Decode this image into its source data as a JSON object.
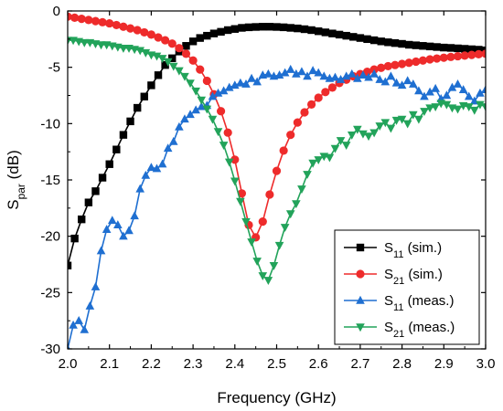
{
  "chart_data": {
    "type": "line",
    "xlabel": "Frequency (GHz)",
    "ylabel": {
      "main": "S",
      "sub": "par",
      "unit": " (dB)"
    },
    "xlim": [
      2.0,
      3.0
    ],
    "ylim": [
      -30,
      0
    ],
    "xticks": [
      2.0,
      2.1,
      2.2,
      2.3,
      2.4,
      2.5,
      2.6,
      2.7,
      2.8,
      2.9,
      3.0
    ],
    "xtick_labels": [
      "2.0",
      "2.1",
      "2.2",
      "2.3",
      "2.4",
      "2.5",
      "2.6",
      "2.7",
      "2.8",
      "2.9",
      "3.0"
    ],
    "yticks": [
      0,
      -5,
      -10,
      -15,
      -20,
      -25,
      -30
    ],
    "ytick_labels": [
      "0",
      "-5",
      "-10",
      "-15",
      "-20",
      "-25",
      "-30"
    ],
    "grid": false,
    "legend_position": "bottom-right",
    "series": [
      {
        "name": "S11 (sim.)",
        "legend": {
          "main": "S",
          "sub": "11",
          "rest": " (sim.)"
        },
        "color": "#000000",
        "marker": "square",
        "x": [
          2.0,
          2.0167,
          2.0333,
          2.05,
          2.0667,
          2.0833,
          2.1,
          2.1167,
          2.1333,
          2.15,
          2.1667,
          2.1833,
          2.2,
          2.2167,
          2.2333,
          2.25,
          2.2667,
          2.2833,
          2.3,
          2.3167,
          2.3333,
          2.35,
          2.3667,
          2.3833,
          2.4,
          2.4167,
          2.4333,
          2.45,
          2.4667,
          2.4833,
          2.5,
          2.5167,
          2.5333,
          2.55,
          2.5667,
          2.5833,
          2.6,
          2.6167,
          2.6333,
          2.65,
          2.6667,
          2.6833,
          2.7,
          2.7167,
          2.7333,
          2.75,
          2.7667,
          2.7833,
          2.8,
          2.8167,
          2.8333,
          2.85,
          2.8667,
          2.8833,
          2.9,
          2.9167,
          2.9333,
          2.95,
          2.9667,
          2.9833,
          3.0
        ],
        "y": [
          -22.6,
          -20.2,
          -18.5,
          -17.0,
          -16.0,
          -14.8,
          -13.6,
          -12.3,
          -11.0,
          -9.8,
          -8.6,
          -7.6,
          -6.6,
          -5.7,
          -4.8,
          -4.2,
          -3.6,
          -3.1,
          -2.7,
          -2.4,
          -2.2,
          -2.0,
          -1.85,
          -1.7,
          -1.6,
          -1.5,
          -1.45,
          -1.42,
          -1.4,
          -1.4,
          -1.42,
          -1.45,
          -1.5,
          -1.55,
          -1.62,
          -1.7,
          -1.8,
          -1.9,
          -2.0,
          -2.1,
          -2.2,
          -2.3,
          -2.4,
          -2.5,
          -2.6,
          -2.7,
          -2.78,
          -2.85,
          -2.92,
          -3.0,
          -3.05,
          -3.1,
          -3.15,
          -3.2,
          -3.25,
          -3.28,
          -3.32,
          -3.36,
          -3.4,
          -3.44,
          -3.5
        ]
      },
      {
        "name": "S21 (sim.)",
        "legend": {
          "main": "S",
          "sub": "21",
          "rest": " (sim.)"
        },
        "color": "#ee2b2b",
        "marker": "circle",
        "x": [
          2.0,
          2.0167,
          2.0333,
          2.05,
          2.0667,
          2.0833,
          2.1,
          2.1167,
          2.1333,
          2.15,
          2.1667,
          2.1833,
          2.2,
          2.2167,
          2.2333,
          2.25,
          2.2667,
          2.2833,
          2.3,
          2.3167,
          2.3333,
          2.35,
          2.3667,
          2.3833,
          2.4,
          2.4167,
          2.4333,
          2.45,
          2.4667,
          2.4833,
          2.5,
          2.5167,
          2.5333,
          2.55,
          2.5667,
          2.5833,
          2.6,
          2.6167,
          2.6333,
          2.65,
          2.6667,
          2.6833,
          2.7,
          2.7167,
          2.7333,
          2.75,
          2.7667,
          2.7833,
          2.8,
          2.8167,
          2.8333,
          2.85,
          2.8667,
          2.8833,
          2.9,
          2.9167,
          2.9333,
          2.95,
          2.9667,
          2.9833,
          3.0
        ],
        "y": [
          -0.5,
          -0.6,
          -0.7,
          -0.8,
          -0.9,
          -1.0,
          -1.1,
          -1.25,
          -1.4,
          -1.55,
          -1.7,
          -1.9,
          -2.1,
          -2.35,
          -2.6,
          -2.9,
          -3.3,
          -3.8,
          -4.4,
          -5.2,
          -6.2,
          -7.4,
          -8.9,
          -10.8,
          -13.2,
          -16.2,
          -19.0,
          -20.1,
          -18.7,
          -16.3,
          -14.2,
          -12.4,
          -11.0,
          -9.9,
          -9.0,
          -8.3,
          -7.7,
          -7.2,
          -6.8,
          -6.4,
          -6.1,
          -5.8,
          -5.6,
          -5.4,
          -5.2,
          -5.05,
          -4.9,
          -4.8,
          -4.7,
          -4.6,
          -4.5,
          -4.4,
          -4.3,
          -4.22,
          -4.15,
          -4.08,
          -4.02,
          -3.96,
          -3.9,
          -3.84,
          -3.8
        ]
      },
      {
        "name": "S11 (meas.)",
        "legend": {
          "main": "S",
          "sub": "11",
          "rest": " (meas.)"
        },
        "color": "#1f6fd1",
        "marker": "triangle-up",
        "x": [
          2.0,
          2.0133,
          2.0267,
          2.04,
          2.0533,
          2.0667,
          2.08,
          2.0933,
          2.1067,
          2.12,
          2.1333,
          2.1467,
          2.16,
          2.1733,
          2.1867,
          2.2,
          2.2133,
          2.2267,
          2.24,
          2.2533,
          2.2667,
          2.28,
          2.2933,
          2.3067,
          2.32,
          2.3333,
          2.3467,
          2.36,
          2.3733,
          2.3867,
          2.4,
          2.4133,
          2.4267,
          2.44,
          2.4533,
          2.4667,
          2.48,
          2.4933,
          2.5067,
          2.52,
          2.5333,
          2.5467,
          2.56,
          2.5733,
          2.5867,
          2.6,
          2.6133,
          2.6267,
          2.64,
          2.6533,
          2.6667,
          2.68,
          2.6933,
          2.7067,
          2.72,
          2.7333,
          2.7467,
          2.76,
          2.7733,
          2.7867,
          2.8,
          2.8133,
          2.8267,
          2.84,
          2.8533,
          2.8667,
          2.88,
          2.8933,
          2.9067,
          2.92,
          2.9333,
          2.9467,
          2.96,
          2.9733,
          2.9867,
          3.0
        ],
        "y": [
          -30.0,
          -27.9,
          -27.5,
          -28.3,
          -26.2,
          -24.5,
          -21.3,
          -19.4,
          -18.6,
          -19.0,
          -20.0,
          -19.5,
          -18.2,
          -15.8,
          -14.6,
          -13.9,
          -14.0,
          -13.6,
          -12.2,
          -11.6,
          -10.3,
          -9.6,
          -9.2,
          -8.8,
          -8.5,
          -8.4,
          -7.6,
          -7.3,
          -7.1,
          -6.8,
          -6.6,
          -6.4,
          -6.5,
          -6.0,
          -6.3,
          -5.7,
          -5.6,
          -5.8,
          -5.7,
          -5.5,
          -5.2,
          -5.6,
          -5.4,
          -5.8,
          -5.3,
          -5.5,
          -5.8,
          -6.0,
          -5.9,
          -6.1,
          -5.8,
          -5.6,
          -6.0,
          -5.7,
          -5.9,
          -5.6,
          -6.1,
          -6.3,
          -5.8,
          -6.4,
          -6.6,
          -6.2,
          -6.5,
          -7.1,
          -7.6,
          -7.2,
          -6.9,
          -7.8,
          -7.5,
          -6.8,
          -6.5,
          -7.0,
          -7.6,
          -8.0,
          -7.3,
          -7.0
        ]
      },
      {
        "name": "S21 (meas.)",
        "legend": {
          "main": "S",
          "sub": "21",
          "rest": " (meas.)"
        },
        "color": "#22a35a",
        "marker": "triangle-down",
        "x": [
          2.0,
          2.0133,
          2.0267,
          2.04,
          2.0533,
          2.0667,
          2.08,
          2.0933,
          2.1067,
          2.12,
          2.1333,
          2.1467,
          2.16,
          2.1733,
          2.1867,
          2.2,
          2.2133,
          2.2267,
          2.24,
          2.2533,
          2.2667,
          2.28,
          2.2933,
          2.3067,
          2.32,
          2.3333,
          2.3467,
          2.36,
          2.3733,
          2.3867,
          2.4,
          2.4133,
          2.4267,
          2.44,
          2.4533,
          2.4667,
          2.48,
          2.4933,
          2.5067,
          2.52,
          2.5333,
          2.5467,
          2.56,
          2.5733,
          2.5867,
          2.6,
          2.6133,
          2.6267,
          2.64,
          2.6533,
          2.6667,
          2.68,
          2.6933,
          2.7067,
          2.72,
          2.7333,
          2.7467,
          2.76,
          2.7733,
          2.7867,
          2.8,
          2.8133,
          2.8267,
          2.84,
          2.8533,
          2.8667,
          2.88,
          2.8933,
          2.9067,
          2.92,
          2.9333,
          2.9467,
          2.96,
          2.9733,
          2.9867,
          3.0
        ],
        "y": [
          -2.6,
          -2.6,
          -2.7,
          -2.8,
          -2.8,
          -2.9,
          -3.0,
          -3.0,
          -3.1,
          -3.2,
          -3.3,
          -3.3,
          -3.4,
          -3.5,
          -3.7,
          -3.9,
          -4.0,
          -4.2,
          -4.5,
          -4.9,
          -5.3,
          -5.8,
          -6.4,
          -7.1,
          -7.9,
          -8.7,
          -9.6,
          -10.7,
          -11.9,
          -13.4,
          -15.1,
          -16.9,
          -18.7,
          -20.5,
          -22.2,
          -23.5,
          -23.9,
          -22.6,
          -20.8,
          -19.2,
          -18.0,
          -17.1,
          -15.8,
          -14.5,
          -13.5,
          -13.2,
          -12.9,
          -13.0,
          -12.2,
          -11.5,
          -11.9,
          -11.0,
          -10.5,
          -10.9,
          -11.1,
          -10.8,
          -10.2,
          -9.9,
          -10.4,
          -9.7,
          -9.6,
          -10.0,
          -9.2,
          -9.6,
          -8.9,
          -8.6,
          -8.5,
          -8.2,
          -8.3,
          -8.6,
          -8.7,
          -8.4,
          -8.5,
          -8.8,
          -8.3,
          -8.5
        ]
      }
    ]
  }
}
